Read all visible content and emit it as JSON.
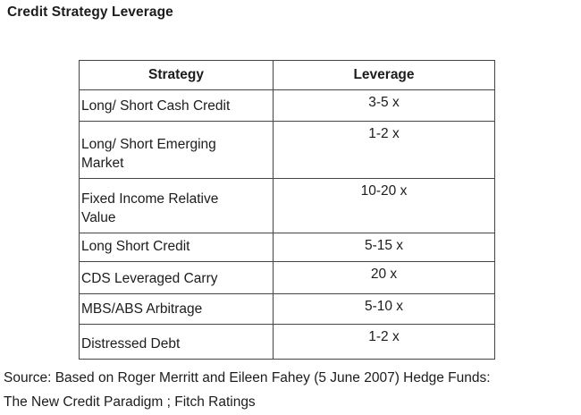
{
  "title": "Credit Strategy Leverage",
  "table": {
    "headers": [
      "Strategy",
      "Leverage"
    ],
    "rows": [
      {
        "strategy": "Long/ Short Cash Credit",
        "leverage": "3-5 x"
      },
      {
        "strategy": "Long/ Short Emerging\nMarket",
        "leverage": "1-2 x"
      },
      {
        "strategy": "Fixed Income Relative\nValue",
        "leverage": "10-20 x"
      },
      {
        "strategy": "Long Short Credit",
        "leverage": "5-15 x"
      },
      {
        "strategy": "CDS Leveraged Carry",
        "leverage": "20 x"
      },
      {
        "strategy": "MBS/ABS Arbitrage",
        "leverage": "5-10 x"
      },
      {
        "strategy": "Distressed Debt",
        "leverage": "1-2 x"
      }
    ]
  },
  "source": {
    "line1": "Source: Based on Roger Merritt and Eileen Fahey (5 June 2007) Hedge Funds:",
    "line2": "The New Credit Paradigm ; Fitch Ratings"
  },
  "colors": {
    "background": "#ffffff",
    "text": "#1c1c1c",
    "table_border": "#454545"
  }
}
